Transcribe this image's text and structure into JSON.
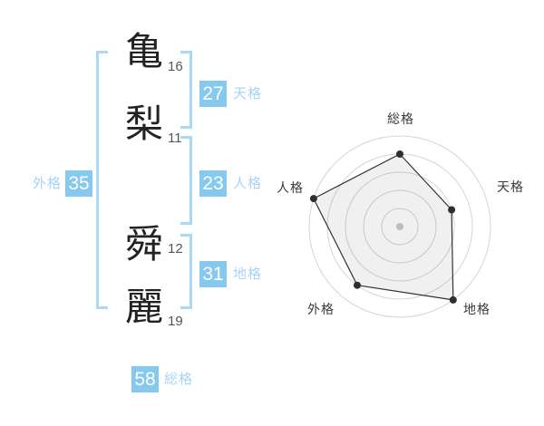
{
  "name": {
    "chars": [
      {
        "char": "亀",
        "strokes": "16"
      },
      {
        "char": "梨",
        "strokes": "11"
      },
      {
        "char": "舜",
        "strokes": "12"
      },
      {
        "char": "麗",
        "strokes": "19"
      }
    ]
  },
  "scores": {
    "tenkaku": {
      "value": "27",
      "label": "天格"
    },
    "jinkaku": {
      "value": "23",
      "label": "人格"
    },
    "chikaku": {
      "value": "31",
      "label": "地格"
    },
    "gaikaku": {
      "value": "35",
      "label": "外格"
    },
    "soukaku": {
      "value": "58",
      "label": "総格"
    }
  },
  "colors": {
    "score_box": "#87c9ee",
    "score_label": "#a6d5f3",
    "bracket": "#a9d9f6",
    "chart_ring": "#d5d5d5",
    "chart_line": "#333333",
    "chart_fill": "rgba(0,0,0,0.06)",
    "chart_dot": "#2e2e2e",
    "center_dot": "#c9c9c9"
  },
  "chart_data": {
    "type": "radar",
    "categories": [
      "総格",
      "天格",
      "地格",
      "外格",
      "人格"
    ],
    "values": [
      80,
      60,
      100,
      80,
      100
    ],
    "max": 100,
    "rings": 5,
    "start_angle_deg": 90,
    "direction": "clockwise",
    "grid": "circular",
    "legend_position": "none",
    "title": ""
  }
}
